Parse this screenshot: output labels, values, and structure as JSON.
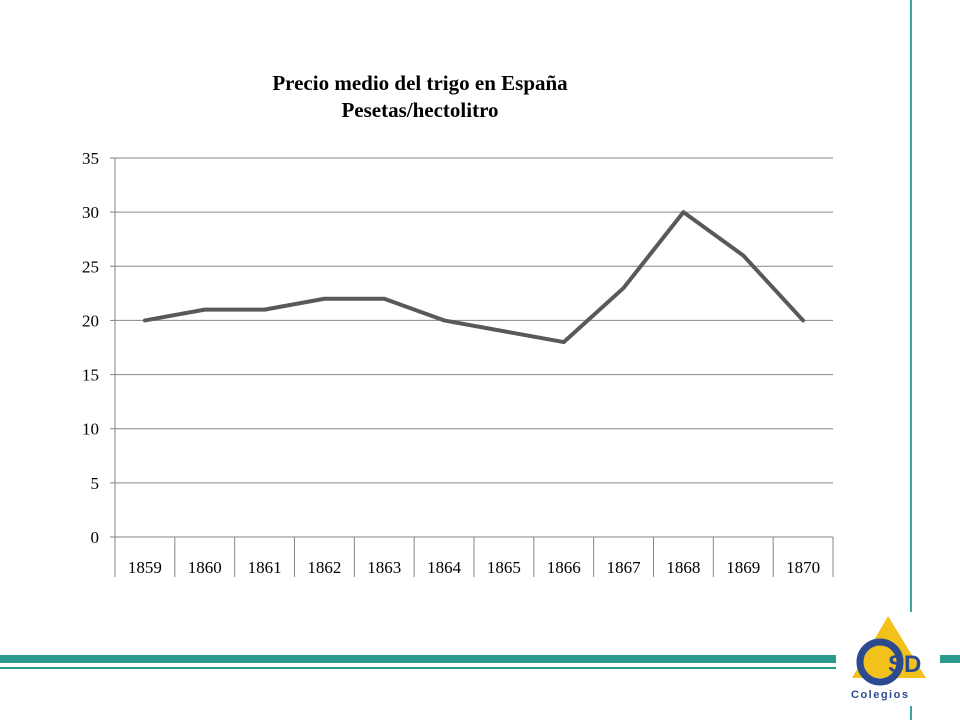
{
  "chart_data": {
    "type": "line",
    "title": "Precio medio del trigo en España",
    "subtitle": "Pesetas/hectolitro",
    "categories": [
      "1859",
      "1860",
      "1861",
      "1862",
      "1863",
      "1864",
      "1865",
      "1866",
      "1867",
      "1868",
      "1869",
      "1870"
    ],
    "series": [
      {
        "values": [
          20,
          21,
          21,
          22,
          22,
          20,
          19,
          18,
          23,
          30,
          26,
          20
        ]
      }
    ],
    "ylim": [
      0,
      35
    ],
    "yticks": [
      0,
      5,
      10,
      15,
      20,
      25,
      30,
      35
    ],
    "grid": true,
    "legend": "none",
    "line_color": "#595959",
    "grid_color": "#868686"
  },
  "branding": {
    "logo_text": "CSD",
    "logo_caption": "Colegios",
    "accent_teal": "#2a9a8c",
    "accent_gold": "#f2c21b",
    "accent_blue": "#2b4a8f"
  }
}
